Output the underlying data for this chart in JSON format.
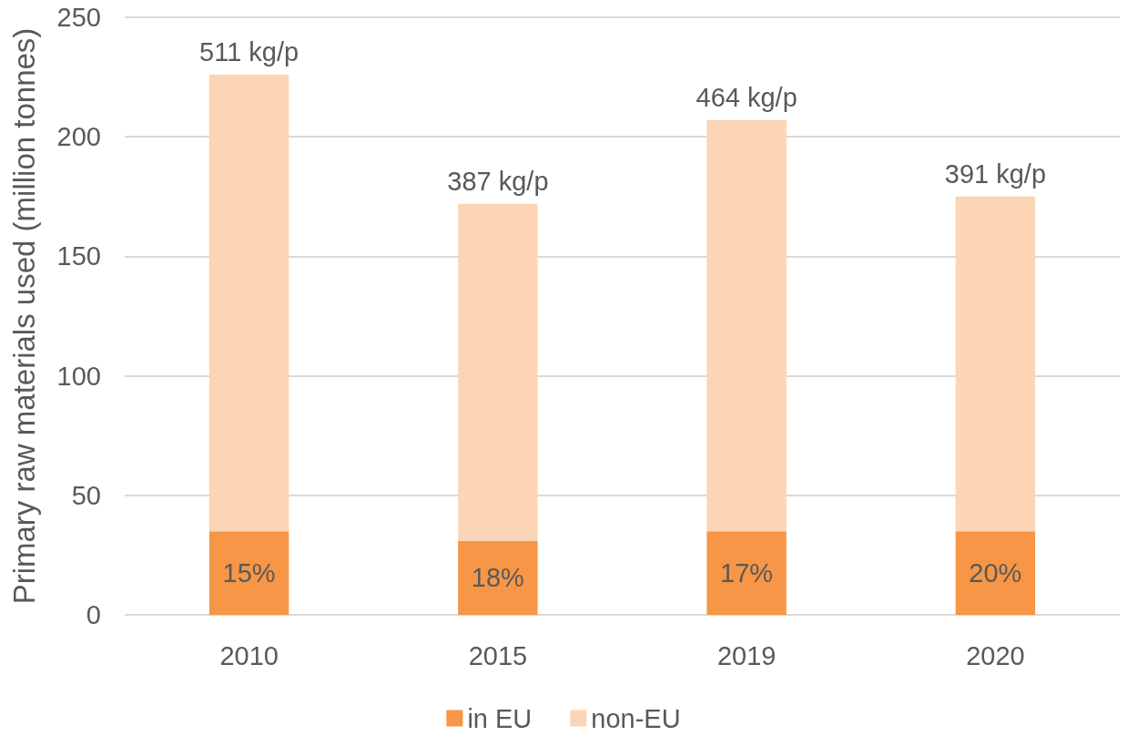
{
  "chart_data": {
    "type": "bar",
    "ylabel": "Primary raw materials used (million tonnes)",
    "categories": [
      "2010",
      "2015",
      "2019",
      "2020"
    ],
    "series": [
      {
        "name": "in EU",
        "color": "#f79646",
        "values": [
          35,
          31,
          35,
          35
        ]
      },
      {
        "name": "non-EU",
        "color": "#fbd5b5",
        "values": [
          191,
          141,
          172,
          140
        ]
      }
    ],
    "stacked": true,
    "annotations": [
      {
        "text": "511 kg/p",
        "x": "2010",
        "y": 226
      },
      {
        "text": "387 kg/p",
        "x": "2015",
        "y": 172
      },
      {
        "text": "464 kg/p",
        "x": "2019",
        "y": 207
      },
      {
        "text": "391 kg/p",
        "x": "2020",
        "y": 175
      },
      {
        "text": "15%",
        "x": "2010",
        "y": 35
      },
      {
        "text": "18%",
        "x": "2015",
        "y": 31
      },
      {
        "text": "17%",
        "x": "2019",
        "y": 35
      },
      {
        "text": "20%",
        "x": "2020",
        "y": 35
      }
    ],
    "ylim": [
      0,
      250
    ],
    "yticks": [
      0,
      50,
      100,
      150,
      200,
      250
    ],
    "grid": "y",
    "legend": "bottom"
  }
}
